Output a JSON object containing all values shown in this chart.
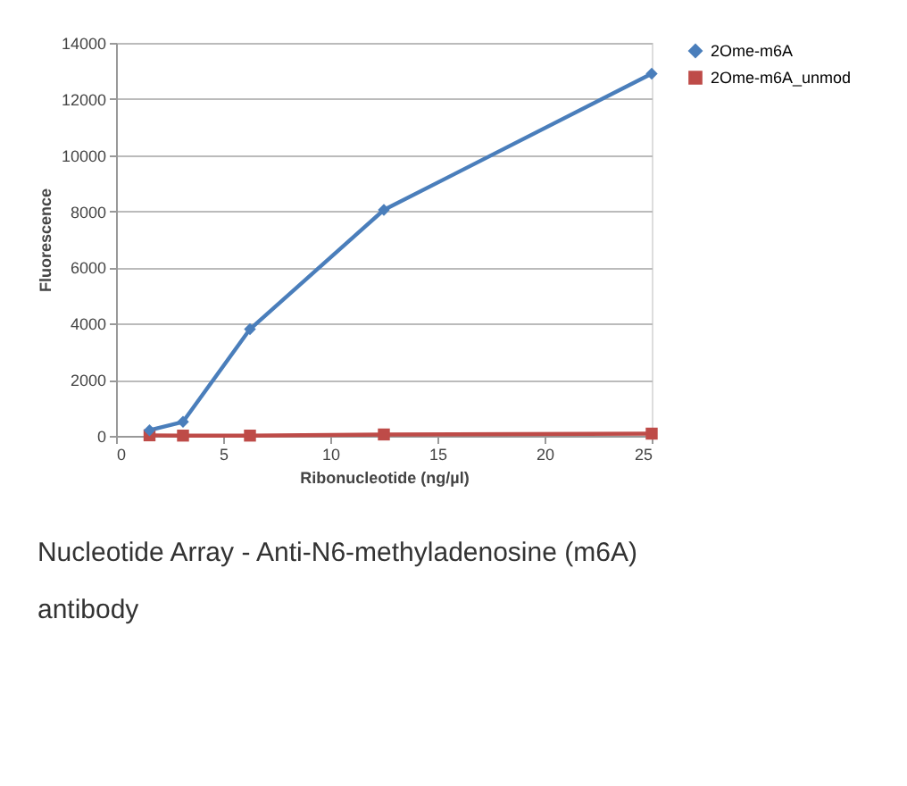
{
  "chart_data": {
    "type": "line",
    "title": "Nucleotide Array - Anti-N6-methyladenosine (m6A) antibody",
    "xlabel": "Ribonucleotide (ng/µl)",
    "ylabel": "Fluorescence",
    "x": [
      1.5625,
      3.125,
      6.25,
      12.5,
      25
    ],
    "series": [
      {
        "name": "2Ome-m6A",
        "color": "#4a7ebb",
        "marker": "diamond",
        "values": [
          200,
          500,
          3800,
          8050,
          12900
        ]
      },
      {
        "name": "2Ome-m6A_unmod",
        "color": "#be4b48",
        "marker": "square",
        "values": [
          20,
          10,
          10,
          50,
          80
        ]
      }
    ],
    "xlim": [
      0,
      25
    ],
    "xticks": [
      0,
      5,
      10,
      15,
      20,
      25
    ],
    "ylim": [
      0,
      14000
    ],
    "yticks": [
      0,
      2000,
      4000,
      6000,
      8000,
      10000,
      12000,
      14000
    ],
    "grid": "y",
    "legend": "right",
    "line_style": "solid"
  }
}
